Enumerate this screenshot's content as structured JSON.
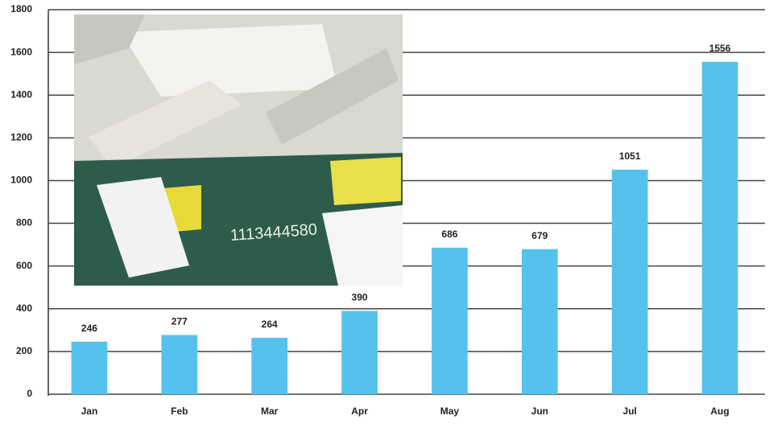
{
  "chart_data": {
    "type": "bar",
    "categories": [
      "Jan",
      "Feb",
      "Mar",
      "Apr",
      "May",
      "Jun",
      "Jul",
      "Aug"
    ],
    "values": [
      246,
      277,
      264,
      390,
      686,
      679,
      1051,
      1556
    ],
    "color": "#55c2ee",
    "ylim": [
      0,
      1800
    ],
    "yticks": [
      0,
      200,
      400,
      600,
      800,
      1000,
      1200,
      1400,
      1600,
      1800
    ],
    "grid": true,
    "annotations": [
      "1113444580"
    ]
  }
}
